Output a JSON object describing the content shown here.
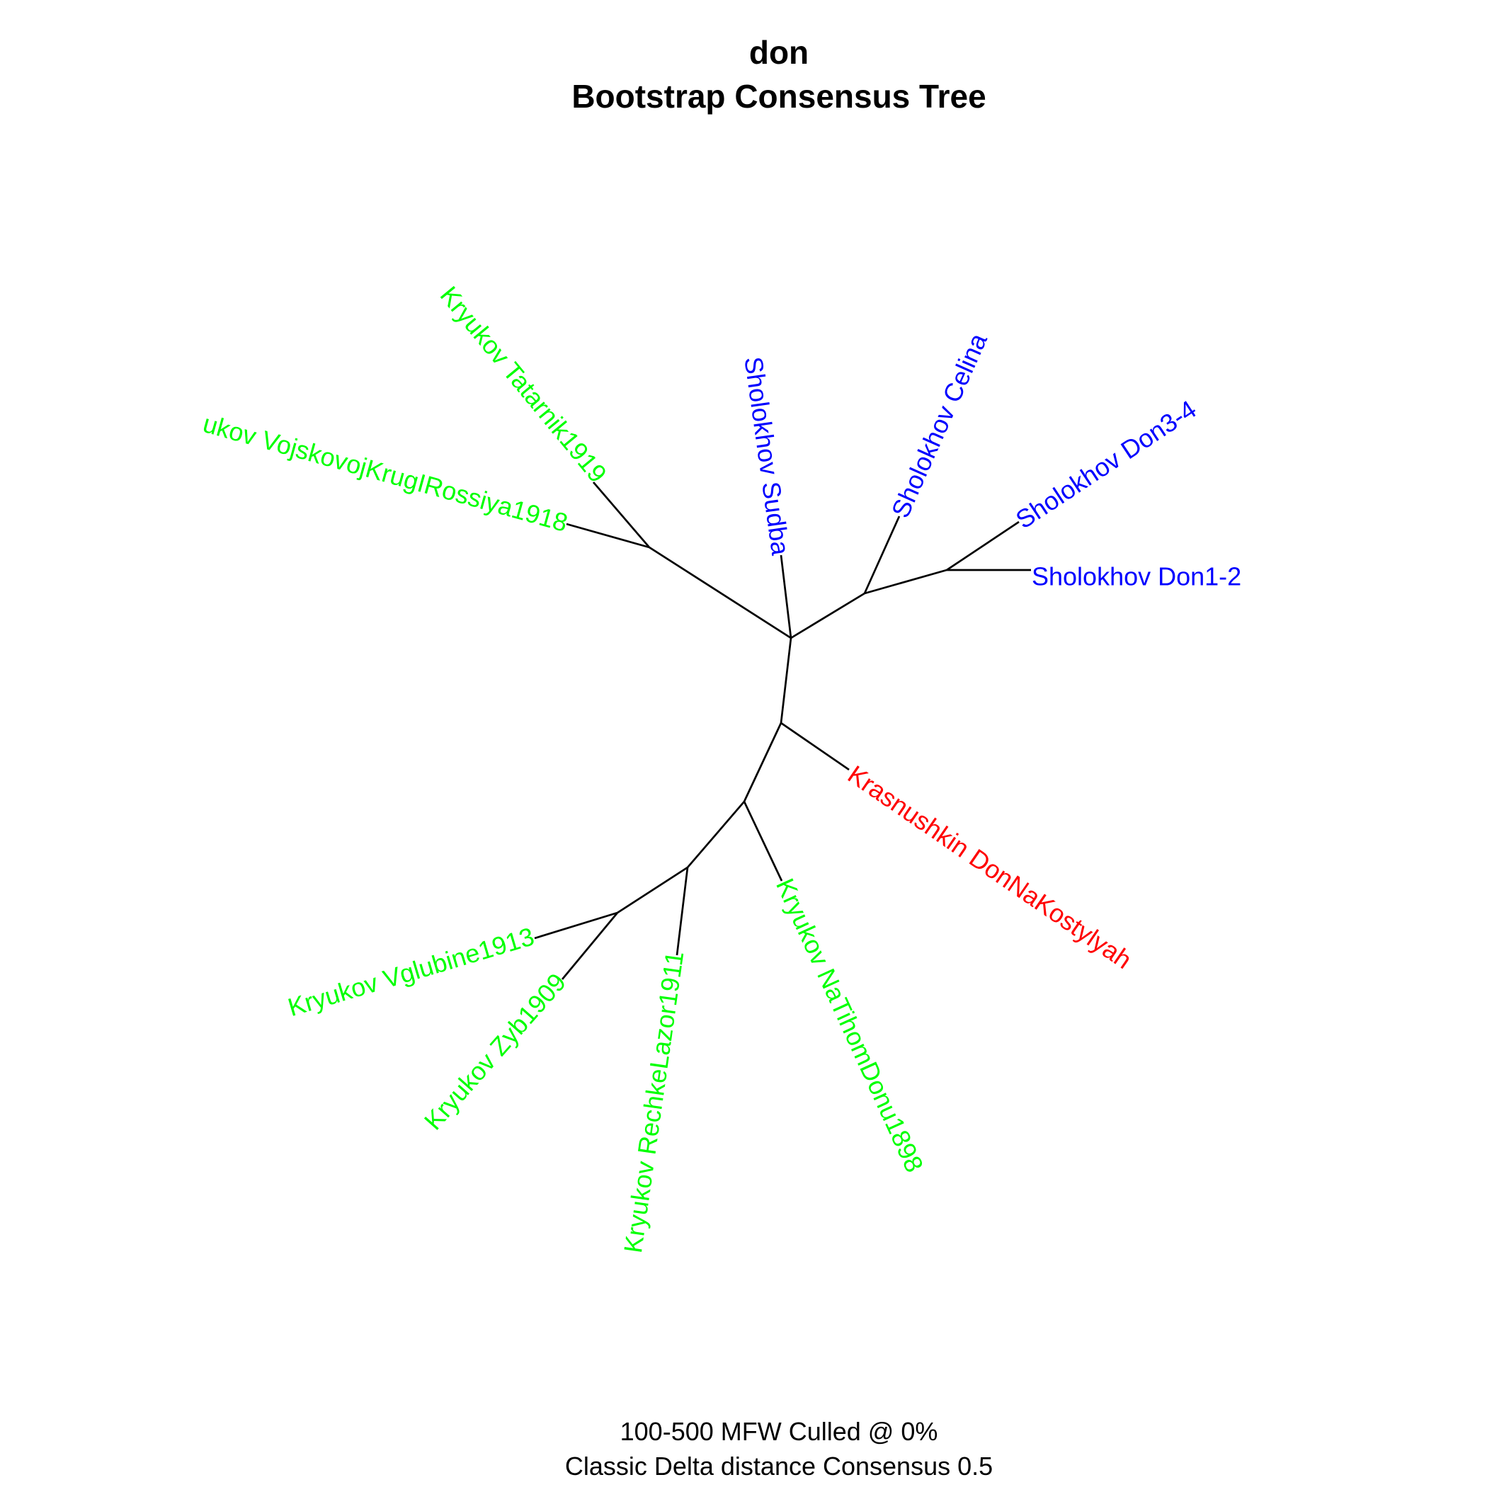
{
  "title": "don",
  "subtitle": "Bootstrap Consensus Tree",
  "caption_line1": "100-500 MFW  Culled @ 0%",
  "caption_line2": "Classic Delta distance Consensus 0.5",
  "colors": {
    "Sholokhov": "#0000ff",
    "Kryukov": "#00ff00",
    "Krasnushkin": "#ff0000",
    "edges": "#000000"
  },
  "leaves": [
    {
      "id": "tatarnik",
      "label": "Kryukov Tatarnik1919",
      "group": "Kryukov"
    },
    {
      "id": "vojskovoj",
      "label": "ukov VojskovojKrugIRossiya1918",
      "group": "Kryukov"
    },
    {
      "id": "sudba",
      "label": "Sholokhov Sudba",
      "group": "Sholokhov"
    },
    {
      "id": "celina",
      "label": "Sholokhov Celina",
      "group": "Sholokhov"
    },
    {
      "id": "don34",
      "label": "Sholokhov Don3-4",
      "group": "Sholokhov"
    },
    {
      "id": "don12",
      "label": "Sholokhov Don1-2",
      "group": "Sholokhov"
    },
    {
      "id": "krasnushkin",
      "label": "Krasnushkin DonNaKostylyah",
      "group": "Krasnushkin"
    },
    {
      "id": "natihom",
      "label": "Kryukov NaTihomDonu1898",
      "group": "Kryukov"
    },
    {
      "id": "rechke",
      "label": "Kryukov RechkeLazor1911",
      "group": "Kryukov"
    },
    {
      "id": "zyb",
      "label": "Kryukov Zyb1909",
      "group": "Kryukov"
    },
    {
      "id": "vglubine",
      "label": "Kryukov Vglubine1913",
      "group": "Kryukov"
    }
  ]
}
